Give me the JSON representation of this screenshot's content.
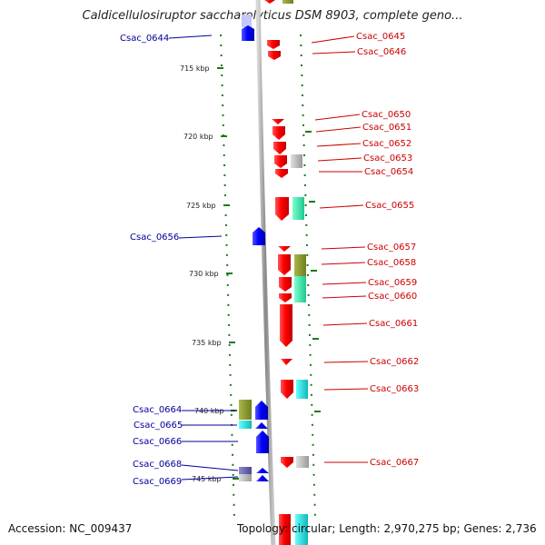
{
  "title": "Caldicellulosiruptor saccharolyticus DSM 8903, complete geno...",
  "footer": {
    "accession": "Accession: NC_009437",
    "topology": "Topology: circular; Length: 2,970,275 bp; Genes: 2,736"
  },
  "colors": {
    "forward_gene": "#ff0000",
    "reverse_gene": "#0000ff",
    "label_forward": "#cc0000",
    "label_reverse": "#000099",
    "cog_olive": "#8a9a2a",
    "cog_teal": "#33e6a6",
    "cog_cyan": "#22d6d6",
    "cog_grey": "#bbbbbb",
    "cog_purple": "#6a6aa8",
    "tick": "#1a7a1a"
  },
  "axis_labels": [
    {
      "text": "715 kbp",
      "value": 715
    },
    {
      "text": "720 kbp",
      "value": 720
    },
    {
      "text": "725 kbp",
      "value": 725
    },
    {
      "text": "730 kbp",
      "value": 730
    },
    {
      "text": "735 kbp",
      "value": 735
    },
    {
      "text": "740 kbp",
      "value": 740
    },
    {
      "text": "745 kbp",
      "value": 745
    }
  ],
  "genes_forward": [
    {
      "label": "Csac_0645"
    },
    {
      "label": "Csac_0646"
    },
    {
      "label": "Csac_0650"
    },
    {
      "label": "Csac_0651"
    },
    {
      "label": "Csac_0652"
    },
    {
      "label": "Csac_0653"
    },
    {
      "label": "Csac_0654"
    },
    {
      "label": "Csac_0655"
    },
    {
      "label": "Csac_0657"
    },
    {
      "label": "Csac_0658"
    },
    {
      "label": "Csac_0659"
    },
    {
      "label": "Csac_0660"
    },
    {
      "label": "Csac_0661"
    },
    {
      "label": "Csac_0662"
    },
    {
      "label": "Csac_0663"
    },
    {
      "label": "Csac_0667"
    }
  ],
  "genes_reverse": [
    {
      "label": "Csac_0644"
    },
    {
      "label": "Csac_0656"
    },
    {
      "label": "Csac_0664"
    },
    {
      "label": "Csac_0665"
    },
    {
      "label": "Csac_0666"
    },
    {
      "label": "Csac_0668"
    },
    {
      "label": "Csac_0669"
    }
  ]
}
